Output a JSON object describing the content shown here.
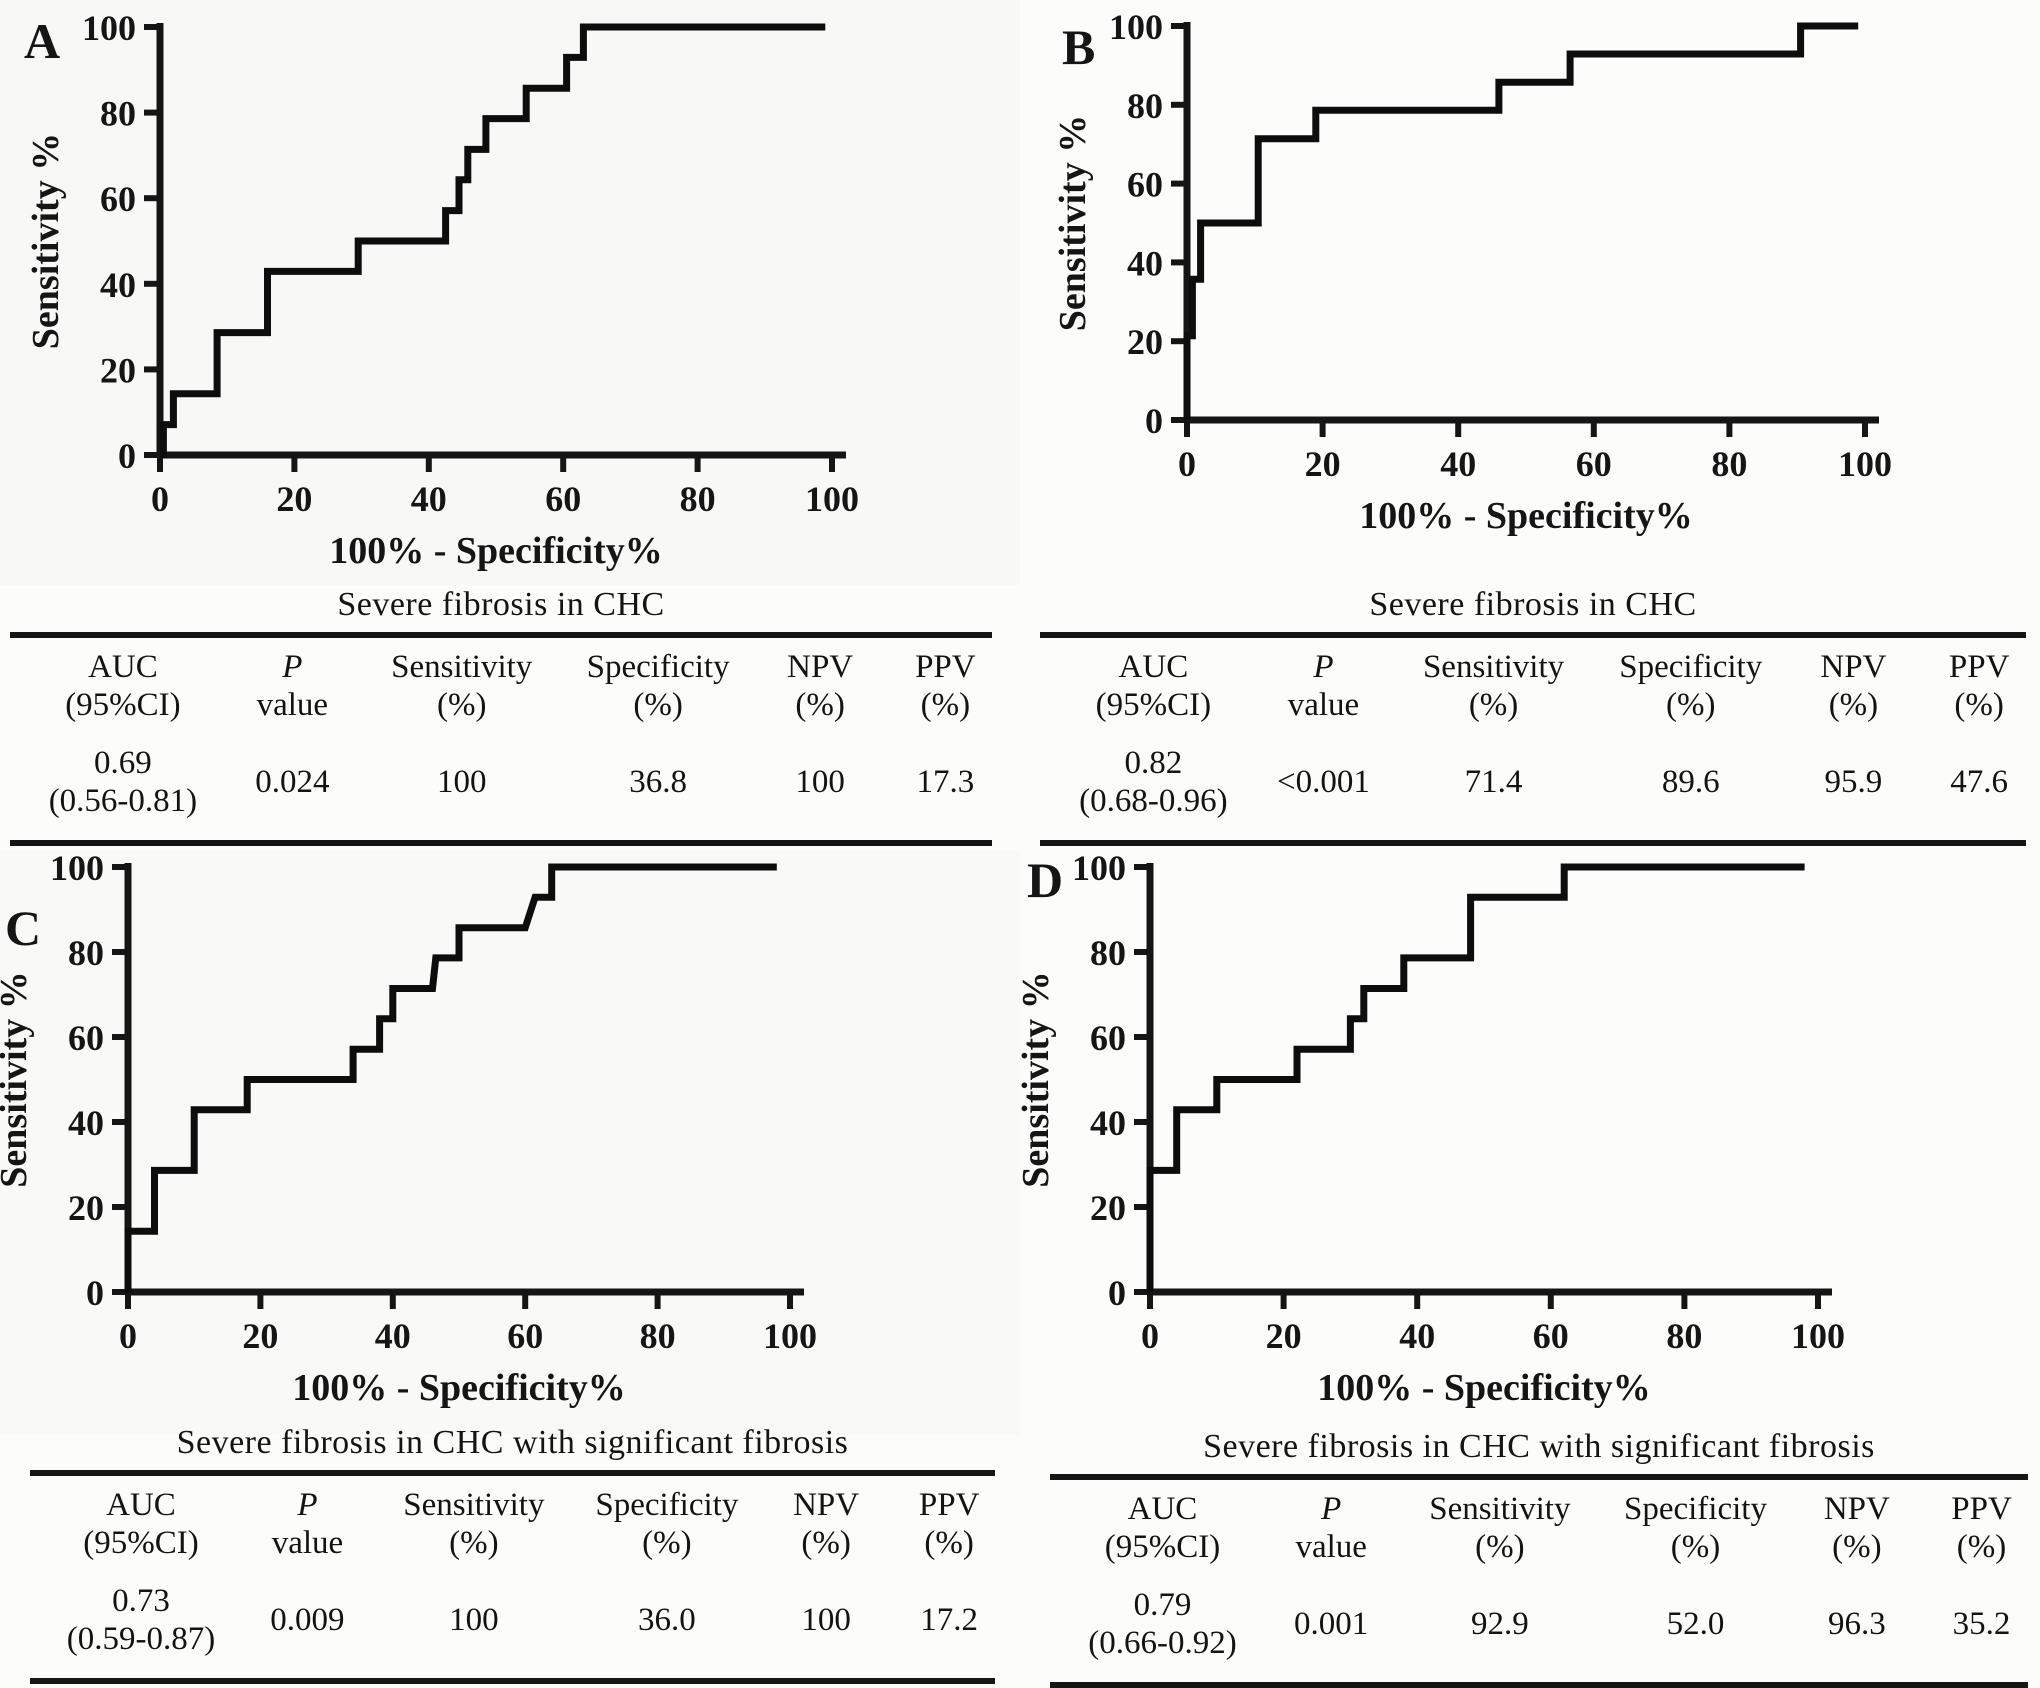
{
  "page": {
    "background": "#fcfcfb",
    "ink": "#151515",
    "curve_color": "#0d0d0d"
  },
  "axis_labels": {
    "x": "100% - Specificity%",
    "y": "Sensitivity %"
  },
  "table_headers": [
    [
      "AUC",
      "(95%CI)"
    ],
    [
      "P",
      "value"
    ],
    [
      "Sensitivity",
      "(%)"
    ],
    [
      "Specificity",
      "(%)"
    ],
    [
      "NPV",
      "(%)"
    ],
    [
      "PPV",
      "(%)"
    ]
  ],
  "chart_data": [
    {
      "panel": "A",
      "type": "line",
      "subtype": "roc_step",
      "title": "Severe fibrosis in CHC",
      "xlabel": "100% - Specificity%",
      "ylabel": "Sensitivity %",
      "xlim": [
        0,
        100
      ],
      "ylim": [
        0,
        100
      ],
      "xticks": [
        0,
        20,
        40,
        60,
        80,
        100
      ],
      "yticks": [
        0,
        20,
        40,
        60,
        80,
        100
      ],
      "grid": false,
      "legend": false,
      "series": [
        {
          "name": "ROC curve",
          "points": [
            [
              0,
              0
            ],
            [
              0.5,
              0
            ],
            [
              0.5,
              7.1
            ],
            [
              2,
              7.1
            ],
            [
              2,
              14.3
            ],
            [
              8.5,
              14.3
            ],
            [
              8.5,
              28.6
            ],
            [
              16,
              28.6
            ],
            [
              16,
              42.9
            ],
            [
              29.5,
              42.9
            ],
            [
              29.5,
              50
            ],
            [
              42.5,
              50
            ],
            [
              42.5,
              57.1
            ],
            [
              44.5,
              57.1
            ],
            [
              44.5,
              64.3
            ],
            [
              45.8,
              64.3
            ],
            [
              45.8,
              71.4
            ],
            [
              48.5,
              71.4
            ],
            [
              48.5,
              78.6
            ],
            [
              54.5,
              78.6
            ],
            [
              54.5,
              85.7
            ],
            [
              60.5,
              85.7
            ],
            [
              60.5,
              92.9
            ],
            [
              63,
              92.9
            ],
            [
              63,
              100
            ],
            [
              99,
              100
            ]
          ]
        }
      ],
      "stats": {
        "auc": "0.69",
        "auc_ci": "(0.56-0.81)",
        "p_value": "0.024",
        "sensitivity": "100",
        "specificity": "36.8",
        "npv": "100",
        "ppv": "17.3"
      }
    },
    {
      "panel": "B",
      "type": "line",
      "subtype": "roc_step",
      "title": "Severe fibrosis in CHC",
      "xlabel": "100% - Specificity%",
      "ylabel": "Sensitivity %",
      "xlim": [
        0,
        100
      ],
      "ylim": [
        0,
        100
      ],
      "xticks": [
        0,
        20,
        40,
        60,
        80,
        100
      ],
      "yticks": [
        0,
        20,
        40,
        60,
        80,
        100
      ],
      "grid": false,
      "legend": false,
      "series": [
        {
          "name": "ROC curve",
          "points": [
            [
              0,
              0
            ],
            [
              0,
              21.4
            ],
            [
              0.8,
              21.4
            ],
            [
              0.8,
              35.7
            ],
            [
              2,
              35.7
            ],
            [
              2,
              50
            ],
            [
              10.5,
              50
            ],
            [
              10.5,
              71.4
            ],
            [
              19,
              71.4
            ],
            [
              19,
              78.6
            ],
            [
              46,
              78.6
            ],
            [
              46,
              85.7
            ],
            [
              56.5,
              85.7
            ],
            [
              56.5,
              92.9
            ],
            [
              90.5,
              92.9
            ],
            [
              90.5,
              100
            ],
            [
              99,
              100
            ]
          ]
        }
      ],
      "stats": {
        "auc": "0.82",
        "auc_ci": "(0.68-0.96)",
        "p_value": "<0.001",
        "sensitivity": "71.4",
        "specificity": "89.6",
        "npv": "95.9",
        "ppv": "47.6"
      }
    },
    {
      "panel": "C",
      "type": "line",
      "subtype": "roc_step",
      "title": "Severe fibrosis in CHC with significant fibrosis",
      "xlabel": "100% - Specificity%",
      "ylabel": "Sensitivity %",
      "xlim": [
        0,
        100
      ],
      "ylim": [
        0,
        100
      ],
      "xticks": [
        0,
        20,
        40,
        60,
        80,
        100
      ],
      "yticks": [
        0,
        20,
        40,
        60,
        80,
        100
      ],
      "grid": false,
      "legend": false,
      "series": [
        {
          "name": "ROC curve",
          "points": [
            [
              0,
              0
            ],
            [
              0,
              14.3
            ],
            [
              4,
              14.3
            ],
            [
              4,
              28.6
            ],
            [
              10,
              28.6
            ],
            [
              10,
              42.9
            ],
            [
              18,
              42.9
            ],
            [
              18,
              50
            ],
            [
              34,
              50
            ],
            [
              34,
              57.1
            ],
            [
              38,
              57.1
            ],
            [
              38,
              64.3
            ],
            [
              40,
              64.3
            ],
            [
              40,
              71.4
            ],
            [
              46,
              71.4
            ],
            [
              46.5,
              78.6
            ],
            [
              50,
              78.6
            ],
            [
              50,
              85.7
            ],
            [
              60,
              85.7
            ],
            [
              61.5,
              92.9
            ],
            [
              64,
              92.9
            ],
            [
              64,
              100
            ],
            [
              98,
              100
            ]
          ]
        }
      ],
      "stats": {
        "auc": "0.73",
        "auc_ci": "(0.59-0.87)",
        "p_value": "0.009",
        "sensitivity": "100",
        "specificity": "36.0",
        "npv": "100",
        "ppv": "17.2"
      }
    },
    {
      "panel": "D",
      "type": "line",
      "subtype": "roc_step",
      "title": "Severe fibrosis in CHC with significant fibrosis",
      "xlabel": "100% - Specificity%",
      "ylabel": "Sensitivity %",
      "xlim": [
        0,
        100
      ],
      "ylim": [
        0,
        100
      ],
      "xticks": [
        0,
        20,
        40,
        60,
        80,
        100
      ],
      "yticks": [
        0,
        20,
        40,
        60,
        80,
        100
      ],
      "grid": false,
      "legend": false,
      "series": [
        {
          "name": "ROC curve",
          "points": [
            [
              0,
              0
            ],
            [
              0,
              28.6
            ],
            [
              4,
              28.6
            ],
            [
              4,
              42.9
            ],
            [
              10,
              42.9
            ],
            [
              10,
              50
            ],
            [
              22,
              50
            ],
            [
              22,
              57.1
            ],
            [
              30,
              57.1
            ],
            [
              30,
              64.3
            ],
            [
              32,
              64.3
            ],
            [
              32,
              71.4
            ],
            [
              38,
              71.4
            ],
            [
              38,
              78.6
            ],
            [
              48,
              78.6
            ],
            [
              48,
              92.9
            ],
            [
              62,
              92.9
            ],
            [
              62,
              100
            ],
            [
              98,
              100
            ]
          ]
        }
      ],
      "stats": {
        "auc": "0.79",
        "auc_ci": "(0.66-0.92)",
        "p_value": "0.001",
        "sensitivity": "92.9",
        "specificity": "52.0",
        "npv": "96.3",
        "ppv": "35.2"
      }
    }
  ]
}
